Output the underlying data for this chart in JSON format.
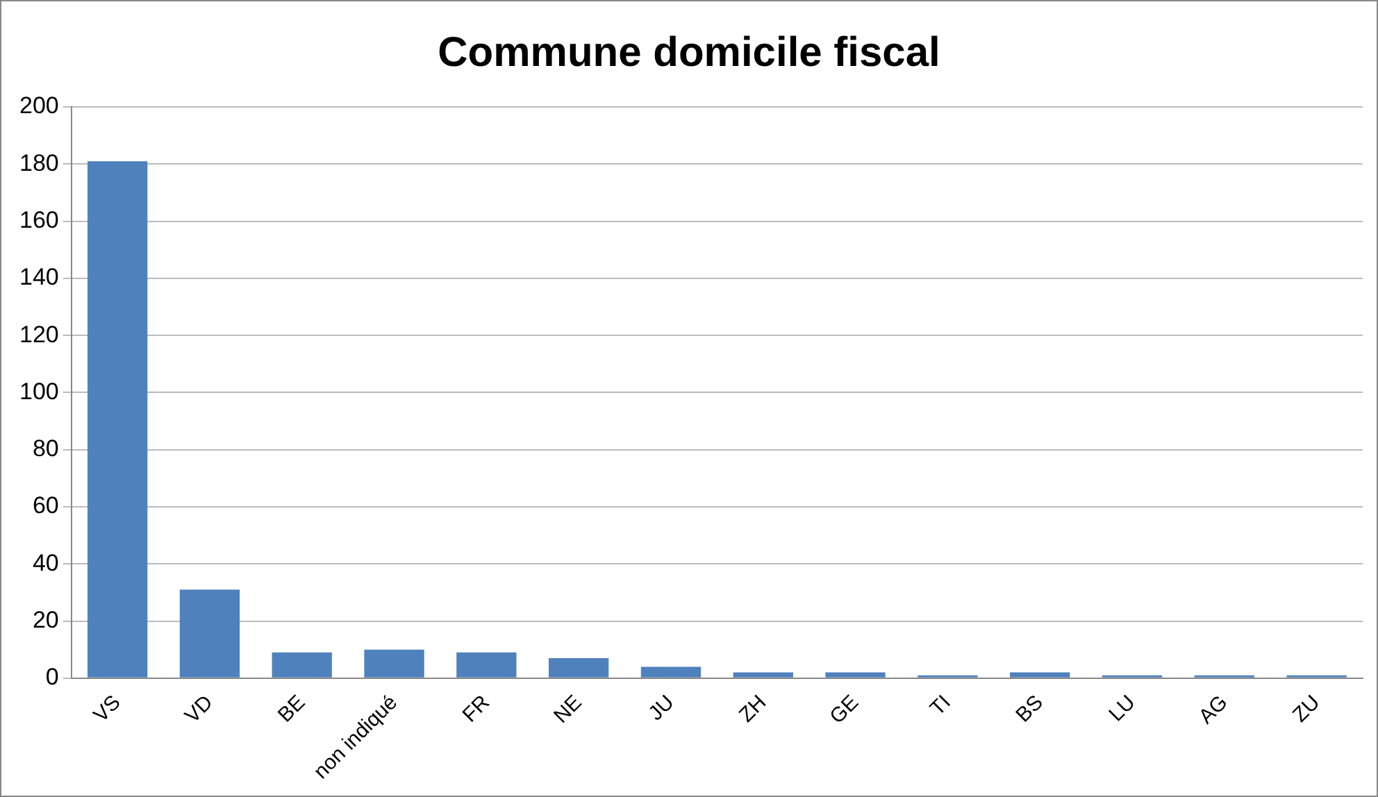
{
  "chart_data": {
    "type": "bar",
    "title": "Commune domicile fiscal",
    "categories": [
      "VS",
      "VD",
      "BE",
      "non indiqué",
      "FR",
      "NE",
      "JU",
      "ZH",
      "GE",
      "TI",
      "BS",
      "LU",
      "AG",
      "ZU"
    ],
    "values": [
      181,
      31,
      9,
      10,
      9,
      7,
      4,
      2,
      2,
      1,
      2,
      1,
      1,
      1
    ],
    "color": "#4f81bd",
    "ylim": [
      0,
      200
    ],
    "yticks": [
      0,
      20,
      40,
      60,
      80,
      100,
      120,
      140,
      160,
      180,
      200
    ],
    "grid": "y",
    "legend": false
  }
}
